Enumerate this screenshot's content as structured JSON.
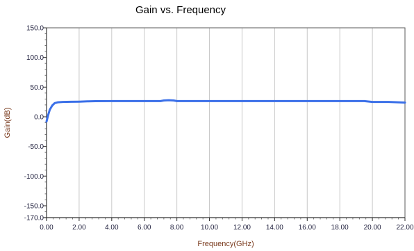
{
  "chart_data": {
    "type": "line",
    "title": "Gain vs. Frequency",
    "xlabel": "Frequency(GHz)",
    "ylabel": "Gain(dB)",
    "xlim": [
      0,
      22
    ],
    "ylim": [
      -170,
      150
    ],
    "xticks": [
      0,
      2,
      4,
      6,
      8,
      10,
      12,
      14,
      16,
      18,
      20,
      22
    ],
    "xtick_labels": [
      "0.00",
      "2.00",
      "4.00",
      "6.00",
      "8.00",
      "10.00",
      "12.00",
      "14.00",
      "16.00",
      "18.00",
      "20.00",
      "22.00"
    ],
    "yticks": [
      150,
      100,
      50,
      0,
      -50,
      -100,
      -150,
      -170
    ],
    "ytick_labels": [
      "150.0",
      "100.0",
      "50.0",
      "0.0",
      "-50.0",
      "-100.0",
      "-150.0",
      "-170.0"
    ],
    "grid": true,
    "legend": "none",
    "series": [
      {
        "color": "#3a6fe8",
        "x": [
          0.0,
          0.1,
          0.2,
          0.35,
          0.5,
          0.7,
          1.0,
          1.5,
          2.0,
          2.5,
          3.0,
          4.0,
          5.0,
          6.0,
          7.0,
          7.2,
          7.5,
          7.8,
          8.0,
          9.0,
          10.0,
          12.0,
          14.0,
          16.0,
          18.0,
          19.5,
          20.0,
          21.0,
          22.0
        ],
        "y": [
          -8,
          3,
          12,
          19,
          23,
          24.5,
          25,
          25.3,
          25.5,
          26,
          26.3,
          26.5,
          26.5,
          26.5,
          26.5,
          27.5,
          28,
          27.5,
          26.5,
          26.5,
          26.5,
          26.5,
          26.5,
          26.5,
          26.5,
          26.5,
          25,
          25,
          24
        ]
      }
    ]
  }
}
